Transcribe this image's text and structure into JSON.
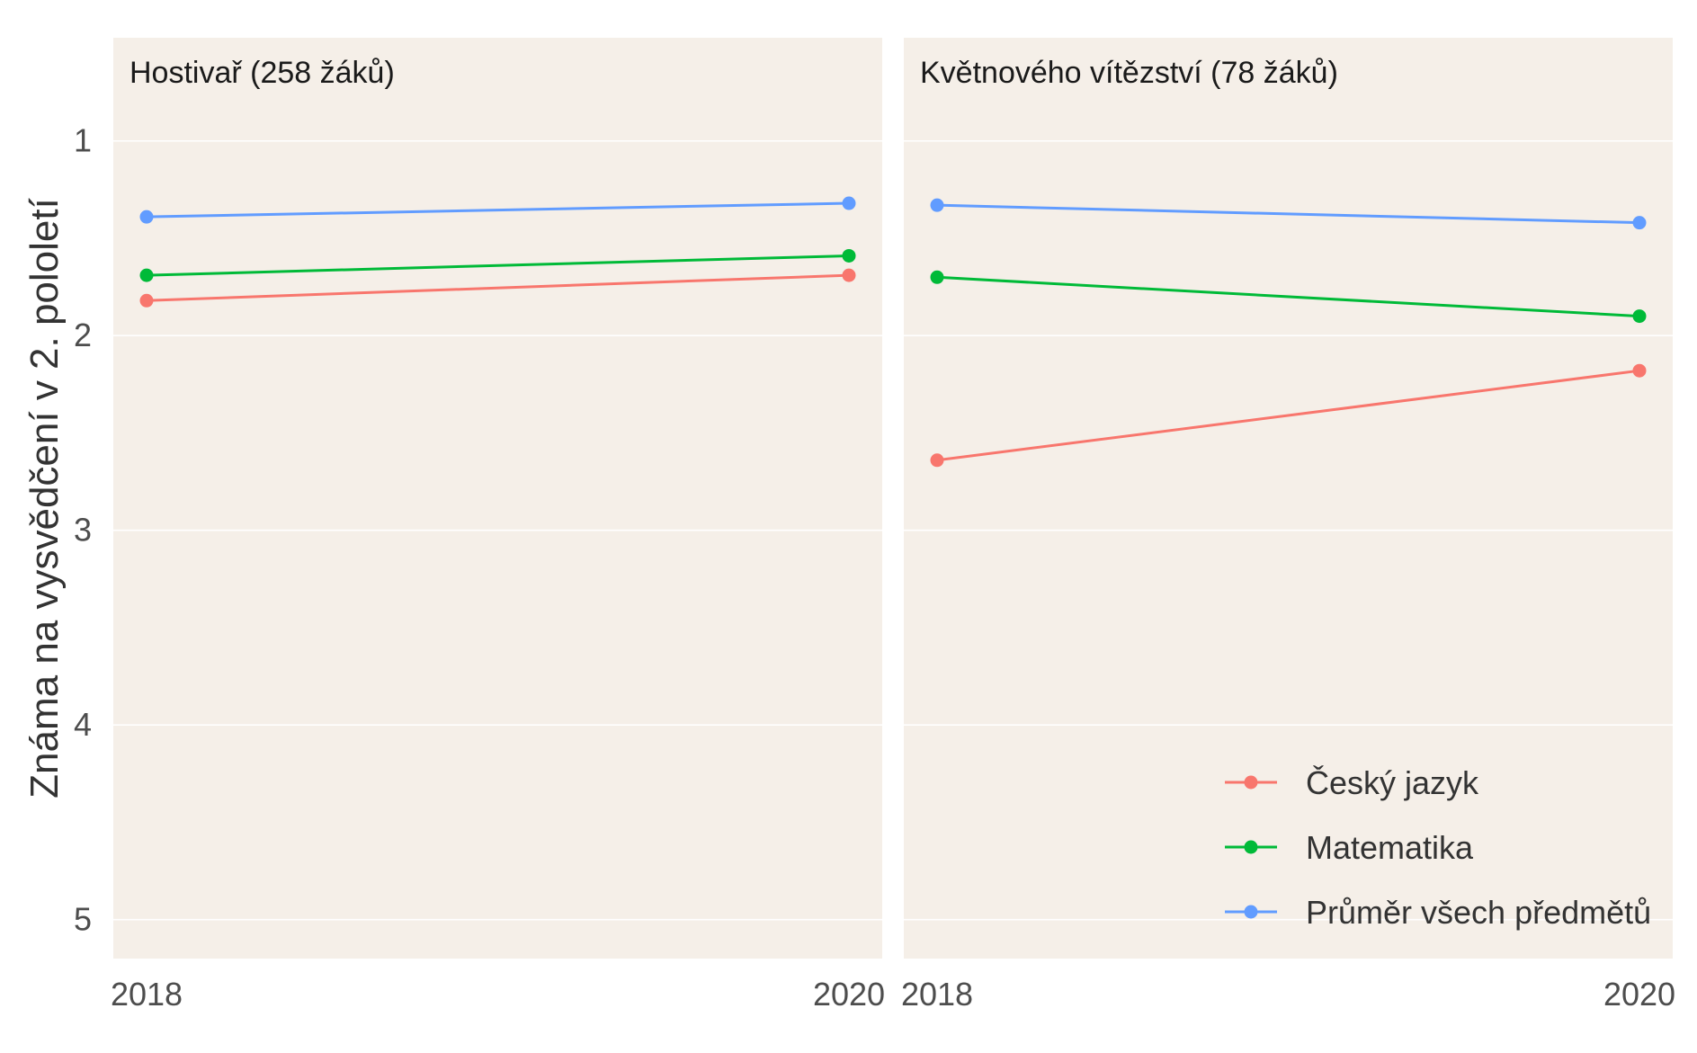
{
  "chart_data": {
    "type": "line",
    "ylabel": "Známa na vysvědčení v 2. pololetí",
    "xlabel": "",
    "x": [
      "2018",
      "2020"
    ],
    "ylim": [
      5.2,
      0.47
    ],
    "y_reversed": true,
    "yticks": [
      "1",
      "2",
      "3",
      "4",
      "5"
    ],
    "legend_position": "bottom-right",
    "series_styles": [
      {
        "name": "Český jazyk",
        "color": "#f8766d"
      },
      {
        "name": "Matematika",
        "color": "#00ba38"
      },
      {
        "name": "Průměr všech předmětů",
        "color": "#619cff"
      }
    ],
    "panels": [
      {
        "title": "Hostivař (258 žáků)",
        "series": [
          {
            "name": "Český jazyk",
            "values": [
              1.82,
              1.69
            ]
          },
          {
            "name": "Matematika",
            "values": [
              1.69,
              1.59
            ]
          },
          {
            "name": "Průměr všech předmětů",
            "values": [
              1.39,
              1.32
            ]
          }
        ]
      },
      {
        "title": "Květnového vítězství (78 žáků)",
        "series": [
          {
            "name": "Český jazyk",
            "values": [
              2.64,
              2.18
            ]
          },
          {
            "name": "Matematika",
            "values": [
              1.7,
              1.9
            ]
          },
          {
            "name": "Průměr všech předmětů",
            "values": [
              1.33,
              1.42
            ]
          }
        ]
      }
    ]
  }
}
